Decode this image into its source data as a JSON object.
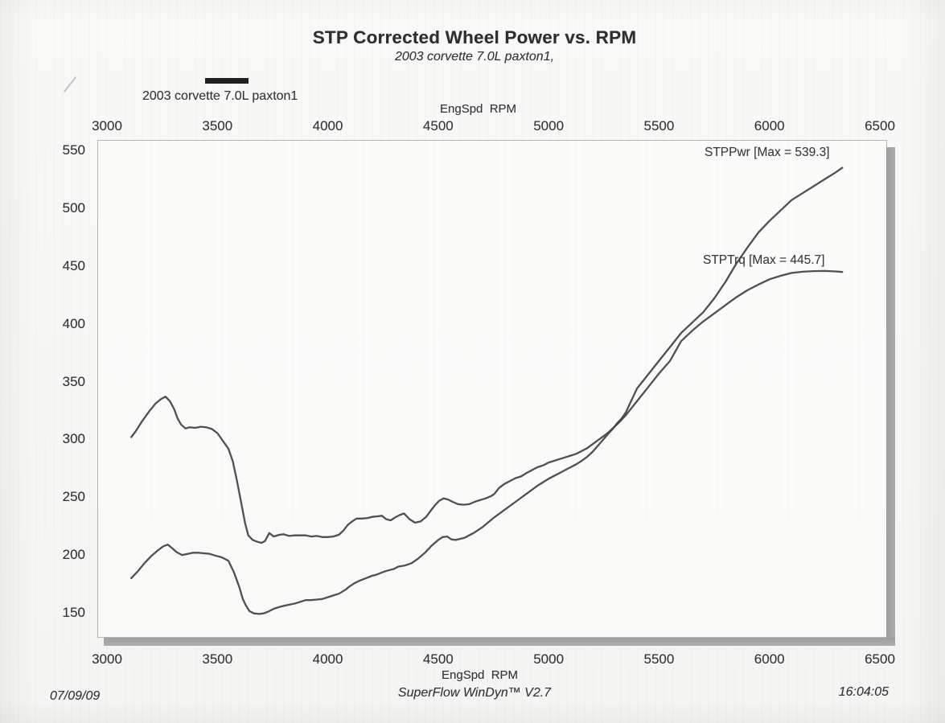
{
  "footer": {
    "date": "07/09/09",
    "software": "SuperFlow WinDyn™ V2.7",
    "time": "16:04:05"
  },
  "chart_data": {
    "type": "line",
    "title": "STP Corrected Wheel Power vs. RPM",
    "subtitle": "2003 corvette 7.0L paxton1,",
    "legend": {
      "label": "2003 corvette 7.0L paxton1",
      "position": "top-left",
      "swatch_color": "#202022"
    },
    "x_axis": {
      "label": "EngSpd  RPM",
      "ticks": [
        3000,
        3500,
        4000,
        4500,
        5000,
        5500,
        6000,
        6500
      ],
      "range": [
        2960,
        6540
      ],
      "shown_on": "top and bottom"
    },
    "y_axis": {
      "ticks": [
        550,
        500,
        450,
        400,
        350,
        300,
        250,
        200,
        150
      ],
      "range": [
        128,
        558
      ],
      "grid": false
    },
    "colors": {
      "curve": "#414145",
      "text": "#39393d",
      "scan_shadow": "#a3a3a3",
      "paper": "#f7f7f5"
    },
    "series": [
      {
        "name": "STPPwr",
        "annotation": "STPPwr [Max = 539.3]",
        "max": 539.3,
        "points": [
          [
            3110,
            180
          ],
          [
            3140,
            186
          ],
          [
            3170,
            193
          ],
          [
            3200,
            199
          ],
          [
            3230,
            204
          ],
          [
            3255,
            207.5
          ],
          [
            3275,
            209
          ],
          [
            3295,
            206
          ],
          [
            3315,
            202.5
          ],
          [
            3340,
            200
          ],
          [
            3365,
            201
          ],
          [
            3390,
            202
          ],
          [
            3415,
            202
          ],
          [
            3440,
            201.5
          ],
          [
            3465,
            201
          ],
          [
            3490,
            199.5
          ],
          [
            3520,
            198
          ],
          [
            3550,
            195
          ],
          [
            3575,
            185
          ],
          [
            3600,
            172
          ],
          [
            3615,
            162
          ],
          [
            3630,
            156
          ],
          [
            3645,
            151.5
          ],
          [
            3665,
            149.5
          ],
          [
            3690,
            149
          ],
          [
            3710,
            149.5
          ],
          [
            3730,
            151
          ],
          [
            3755,
            153.5
          ],
          [
            3780,
            155
          ],
          [
            3800,
            156
          ],
          [
            3825,
            157
          ],
          [
            3850,
            158
          ],
          [
            3875,
            159.5
          ],
          [
            3900,
            161
          ],
          [
            3925,
            161
          ],
          [
            3950,
            161.5
          ],
          [
            3975,
            162
          ],
          [
            4000,
            163.5
          ],
          [
            4025,
            165
          ],
          [
            4050,
            166.5
          ],
          [
            4080,
            170
          ],
          [
            4100,
            173
          ],
          [
            4120,
            175.5
          ],
          [
            4140,
            177.5
          ],
          [
            4160,
            179
          ],
          [
            4180,
            180.5
          ],
          [
            4200,
            182
          ],
          [
            4220,
            183
          ],
          [
            4240,
            184.5
          ],
          [
            4260,
            186
          ],
          [
            4280,
            187
          ],
          [
            4300,
            188
          ],
          [
            4320,
            190
          ],
          [
            4350,
            191
          ],
          [
            4380,
            193
          ],
          [
            4410,
            197
          ],
          [
            4440,
            202
          ],
          [
            4470,
            208
          ],
          [
            4500,
            213
          ],
          [
            4520,
            215.5
          ],
          [
            4540,
            216
          ],
          [
            4560,
            213.5
          ],
          [
            4580,
            213
          ],
          [
            4600,
            214
          ],
          [
            4620,
            215
          ],
          [
            4640,
            217
          ],
          [
            4660,
            219
          ],
          [
            4680,
            221.5
          ],
          [
            4700,
            224
          ],
          [
            4725,
            228
          ],
          [
            4750,
            232
          ],
          [
            4775,
            235.5
          ],
          [
            4800,
            239
          ],
          [
            4825,
            242.5
          ],
          [
            4850,
            246
          ],
          [
            4875,
            249.5
          ],
          [
            4900,
            253
          ],
          [
            4925,
            256.5
          ],
          [
            4950,
            260
          ],
          [
            4975,
            263
          ],
          [
            5000,
            266
          ],
          [
            5025,
            268.5
          ],
          [
            5050,
            271
          ],
          [
            5075,
            273.5
          ],
          [
            5100,
            276
          ],
          [
            5125,
            278.5
          ],
          [
            5150,
            281.5
          ],
          [
            5175,
            285
          ],
          [
            5200,
            289.5
          ],
          [
            5225,
            295
          ],
          [
            5250,
            300.5
          ],
          [
            5270,
            305
          ],
          [
            5290,
            309
          ],
          [
            5310,
            314
          ],
          [
            5330,
            318
          ],
          [
            5350,
            323.5
          ],
          [
            5400,
            344
          ],
          [
            5450,
            356
          ],
          [
            5500,
            368
          ],
          [
            5550,
            380
          ],
          [
            5600,
            392
          ],
          [
            5650,
            401
          ],
          [
            5700,
            410
          ],
          [
            5750,
            422
          ],
          [
            5800,
            436
          ],
          [
            5850,
            452
          ],
          [
            5900,
            466
          ],
          [
            5950,
            479
          ],
          [
            6000,
            489
          ],
          [
            6050,
            498
          ],
          [
            6100,
            507
          ],
          [
            6150,
            513
          ],
          [
            6200,
            519
          ],
          [
            6250,
            525
          ],
          [
            6300,
            531
          ],
          [
            6330,
            535
          ]
        ]
      },
      {
        "name": "STPTrq",
        "annotation": "STPTrq [Max = 445.7]",
        "max": 445.7,
        "points": [
          [
            3110,
            302
          ],
          [
            3130,
            307
          ],
          [
            3160,
            316
          ],
          [
            3190,
            324
          ],
          [
            3220,
            331
          ],
          [
            3245,
            335
          ],
          [
            3265,
            337
          ],
          [
            3285,
            333
          ],
          [
            3305,
            326
          ],
          [
            3320,
            318
          ],
          [
            3335,
            313
          ],
          [
            3355,
            309.5
          ],
          [
            3375,
            310.5
          ],
          [
            3400,
            310
          ],
          [
            3425,
            311
          ],
          [
            3450,
            310.5
          ],
          [
            3475,
            309
          ],
          [
            3500,
            305.5
          ],
          [
            3520,
            300
          ],
          [
            3550,
            292
          ],
          [
            3570,
            281
          ],
          [
            3590,
            263
          ],
          [
            3610,
            243
          ],
          [
            3625,
            228
          ],
          [
            3640,
            217
          ],
          [
            3660,
            213
          ],
          [
            3680,
            211.5
          ],
          [
            3700,
            210.5
          ],
          [
            3715,
            212
          ],
          [
            3735,
            219
          ],
          [
            3755,
            216
          ],
          [
            3780,
            217.5
          ],
          [
            3800,
            218
          ],
          [
            3825,
            216.5
          ],
          [
            3850,
            217
          ],
          [
            3875,
            217
          ],
          [
            3900,
            217
          ],
          [
            3925,
            216
          ],
          [
            3950,
            216.5
          ],
          [
            3975,
            215.5
          ],
          [
            4000,
            215.5
          ],
          [
            4025,
            216
          ],
          [
            4050,
            217.5
          ],
          [
            4070,
            221
          ],
          [
            4090,
            226
          ],
          [
            4110,
            229
          ],
          [
            4130,
            231.5
          ],
          [
            4155,
            231.5
          ],
          [
            4180,
            232
          ],
          [
            4200,
            233
          ],
          [
            4225,
            233.5
          ],
          [
            4245,
            234
          ],
          [
            4265,
            231
          ],
          [
            4285,
            230
          ],
          [
            4305,
            232.5
          ],
          [
            4325,
            234.5
          ],
          [
            4345,
            236
          ],
          [
            4370,
            231
          ],
          [
            4395,
            228
          ],
          [
            4420,
            229
          ],
          [
            4445,
            233
          ],
          [
            4465,
            238
          ],
          [
            4485,
            243
          ],
          [
            4505,
            247
          ],
          [
            4525,
            249
          ],
          [
            4545,
            248
          ],
          [
            4565,
            246
          ],
          [
            4590,
            244
          ],
          [
            4615,
            243.5
          ],
          [
            4640,
            244
          ],
          [
            4665,
            246
          ],
          [
            4690,
            247.5
          ],
          [
            4715,
            249
          ],
          [
            4740,
            251
          ],
          [
            4755,
            253
          ],
          [
            4775,
            258
          ],
          [
            4800,
            261.5
          ],
          [
            4825,
            264
          ],
          [
            4850,
            266.5
          ],
          [
            4875,
            268
          ],
          [
            4900,
            271
          ],
          [
            4925,
            273.5
          ],
          [
            4950,
            276
          ],
          [
            4975,
            277.5
          ],
          [
            5000,
            280
          ],
          [
            5025,
            281.5
          ],
          [
            5050,
            283
          ],
          [
            5075,
            284.5
          ],
          [
            5100,
            286
          ],
          [
            5125,
            287.5
          ],
          [
            5150,
            290
          ],
          [
            5175,
            292.5
          ],
          [
            5200,
            296
          ],
          [
            5225,
            299.5
          ],
          [
            5250,
            303
          ],
          [
            5270,
            306
          ],
          [
            5290,
            309.5
          ],
          [
            5310,
            313
          ],
          [
            5330,
            317
          ],
          [
            5350,
            321
          ],
          [
            5400,
            333
          ],
          [
            5450,
            345
          ],
          [
            5500,
            357
          ],
          [
            5550,
            368
          ],
          [
            5600,
            385
          ],
          [
            5650,
            394
          ],
          [
            5700,
            402
          ],
          [
            5750,
            409
          ],
          [
            5800,
            416
          ],
          [
            5850,
            423
          ],
          [
            5900,
            429
          ],
          [
            5950,
            434
          ],
          [
            6000,
            438.5
          ],
          [
            6050,
            441.5
          ],
          [
            6100,
            444
          ],
          [
            6150,
            445
          ],
          [
            6200,
            445.6
          ],
          [
            6250,
            445.7
          ],
          [
            6300,
            445.3
          ],
          [
            6330,
            444.8
          ]
        ]
      }
    ]
  }
}
